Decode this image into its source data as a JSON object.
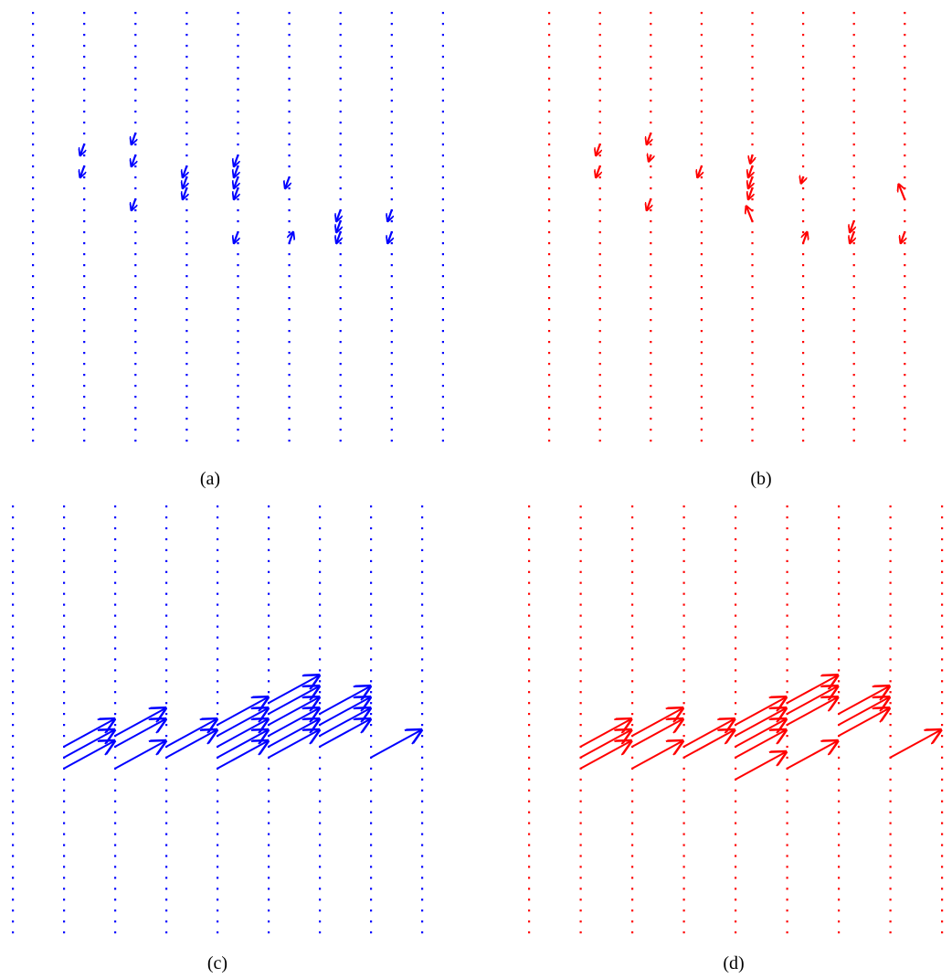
{
  "chart_data": [
    {
      "type": "quiver",
      "caption": "(a)",
      "color": "#0000ff",
      "grid": {
        "columns": 9,
        "rows": 40
      },
      "vectors": [
        [
          1,
          12,
          -0.2,
          0.55
        ],
        [
          1,
          14,
          -0.2,
          0.55
        ],
        [
          2,
          11,
          -0.2,
          0.55
        ],
        [
          2,
          13,
          -0.2,
          0.55
        ],
        [
          2,
          17,
          -0.2,
          0.55
        ],
        [
          3,
          14,
          -0.2,
          0.55
        ],
        [
          3,
          15,
          -0.2,
          0.55
        ],
        [
          3,
          16,
          -0.2,
          0.55
        ],
        [
          4,
          13,
          -0.2,
          0.55
        ],
        [
          4,
          14,
          -0.2,
          0.55
        ],
        [
          4,
          15,
          -0.2,
          0.55
        ],
        [
          4,
          16,
          -0.2,
          0.55
        ],
        [
          4,
          20,
          -0.2,
          0.55
        ],
        [
          5,
          15,
          -0.2,
          0.55
        ],
        [
          5,
          21,
          0.2,
          -0.55
        ],
        [
          6,
          18,
          -0.2,
          0.55
        ],
        [
          6,
          19,
          -0.2,
          0.55
        ],
        [
          6,
          20,
          -0.2,
          0.55
        ],
        [
          7,
          18,
          -0.2,
          0.55
        ],
        [
          7,
          20,
          -0.2,
          0.55
        ]
      ]
    },
    {
      "type": "quiver",
      "caption": "(b)",
      "color": "#ff0000",
      "grid": {
        "columns": 8,
        "rows": 40
      },
      "vectors": [
        [
          1,
          12,
          -0.2,
          0.55
        ],
        [
          1,
          14,
          -0.2,
          0.55
        ],
        [
          2,
          11,
          -0.2,
          0.55
        ],
        [
          2,
          13,
          -0.1,
          0.3
        ],
        [
          2,
          17,
          -0.2,
          0.55
        ],
        [
          3,
          14,
          -0.2,
          0.55
        ],
        [
          4,
          13,
          -0.1,
          0.4
        ],
        [
          4,
          14,
          -0.2,
          0.55
        ],
        [
          4,
          15,
          -0.2,
          0.55
        ],
        [
          4,
          16,
          -0.2,
          0.55
        ],
        [
          4,
          19,
          -0.3,
          -0.75
        ],
        [
          5,
          15,
          -0.1,
          0.3
        ],
        [
          5,
          21,
          0.2,
          -0.55
        ],
        [
          6,
          19,
          -0.2,
          0.55
        ],
        [
          6,
          20,
          -0.2,
          0.55
        ],
        [
          7,
          17,
          -0.3,
          -0.75
        ],
        [
          7,
          20,
          -0.2,
          0.55
        ]
      ]
    },
    {
      "type": "quiver",
      "caption": "(c)",
      "color": "#0000ff",
      "grid": {
        "columns": 9,
        "rows": 40
      },
      "vectors": [
        [
          1,
          22,
          1.1,
          -0.6
        ],
        [
          1,
          23,
          1.1,
          -0.6
        ],
        [
          1,
          24,
          1.1,
          -0.6
        ],
        [
          2,
          21,
          1.1,
          -0.6
        ],
        [
          2,
          22,
          1.1,
          -0.6
        ],
        [
          2,
          24,
          1.1,
          -0.6
        ],
        [
          3,
          22,
          1.1,
          -0.6
        ],
        [
          3,
          23,
          1.1,
          -0.6
        ],
        [
          4,
          20,
          1.1,
          -0.6
        ],
        [
          4,
          21,
          1.1,
          -0.6
        ],
        [
          4,
          22,
          1.1,
          -0.6
        ],
        [
          4,
          23,
          1.1,
          -0.6
        ],
        [
          4,
          24,
          1.1,
          -0.6
        ],
        [
          5,
          18,
          1.1,
          -0.6
        ],
        [
          5,
          19,
          1.1,
          -0.6
        ],
        [
          5,
          20,
          1.1,
          -0.6
        ],
        [
          5,
          21,
          1.1,
          -0.6
        ],
        [
          5,
          22,
          1.1,
          -0.6
        ],
        [
          5,
          23,
          1.1,
          -0.6
        ],
        [
          6,
          19,
          1.1,
          -0.6
        ],
        [
          6,
          20,
          1.1,
          -0.6
        ],
        [
          6,
          21,
          1.1,
          -0.6
        ],
        [
          6,
          22,
          1.1,
          -0.6
        ],
        [
          7,
          23,
          1.1,
          -0.6
        ]
      ]
    },
    {
      "type": "quiver",
      "caption": "(d)",
      "color": "#ff0000",
      "grid": {
        "columns": 9,
        "rows": 40
      },
      "vectors": [
        [
          1,
          22,
          1.1,
          -0.6
        ],
        [
          1,
          23,
          1.1,
          -0.6
        ],
        [
          1,
          24,
          1.1,
          -0.6
        ],
        [
          2,
          21,
          1.1,
          -0.6
        ],
        [
          2,
          22,
          1.1,
          -0.6
        ],
        [
          2,
          24,
          1.1,
          -0.6
        ],
        [
          3,
          22,
          1.1,
          -0.6
        ],
        [
          3,
          23,
          1.1,
          -0.6
        ],
        [
          4,
          20,
          1.1,
          -0.6
        ],
        [
          4,
          21,
          1.1,
          -0.6
        ],
        [
          4,
          22,
          1.1,
          -0.6
        ],
        [
          4,
          23,
          1.1,
          -0.6
        ],
        [
          4,
          25,
          1.1,
          -0.6
        ],
        [
          5,
          18,
          1.1,
          -0.6
        ],
        [
          5,
          19,
          1.1,
          -0.6
        ],
        [
          5,
          20,
          1.1,
          -0.6
        ],
        [
          5,
          24,
          1.1,
          -0.6
        ],
        [
          6,
          19,
          1.1,
          -0.6
        ],
        [
          6,
          20,
          1.1,
          -0.6
        ],
        [
          6,
          21,
          1.1,
          -0.6
        ],
        [
          7,
          23,
          1.1,
          -0.6
        ]
      ]
    }
  ]
}
